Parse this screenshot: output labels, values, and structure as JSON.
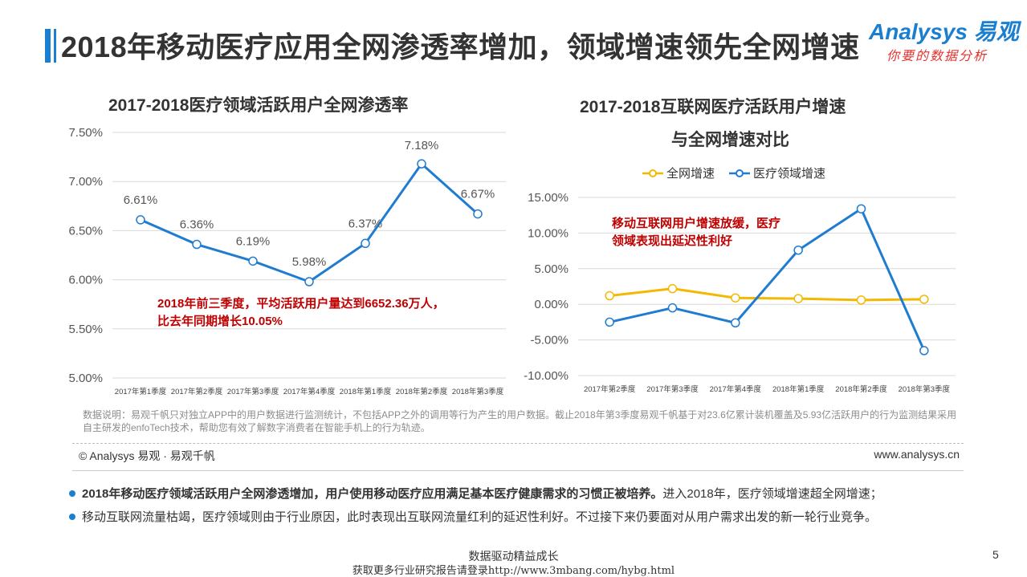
{
  "page_title": "2018年移动医疗应用全网渗透率增加，领域增速领先全网增速",
  "logo": {
    "main": "Analysys 易观",
    "sub": "你要的数据分析"
  },
  "colors": {
    "accent": "#1a7fd0",
    "series_blue": "#1f7cd1",
    "series_yellow": "#f5b800",
    "annotation": "#c00000"
  },
  "left_chart": {
    "title": "2017-2018医疗领域活跃用户全网渗透率",
    "annotation_line1": "2018年前三季度，平均活跃用户量达到6652.36万人，",
    "annotation_line2": "比去年同期增长10.05%"
  },
  "right_chart": {
    "title_line1": "2017-2018互联网医疗活跃用户增速",
    "title_line2": "与全网增速对比",
    "annotation_line1": "移动互联网用户增速放缓，医疗",
    "annotation_line2": "领域表现出延迟性利好"
  },
  "chart_data": [
    {
      "type": "line",
      "title": "2017-2018医疗领域活跃用户全网渗透率",
      "categories": [
        "2017年第1季度",
        "2017年第2季度",
        "2017年第3季度",
        "2017年第4季度",
        "2018年第1季度",
        "2018年第2季度",
        "2018年第3季度"
      ],
      "series": [
        {
          "values": [
            6.61,
            6.36,
            6.19,
            5.98,
            6.37,
            7.18,
            6.67
          ]
        }
      ],
      "data_labels": [
        "6.61%",
        "6.36%",
        "6.19%",
        "5.98%",
        "6.37%",
        "7.18%",
        "6.67%"
      ],
      "yticks": [
        "5.00%",
        "5.50%",
        "6.00%",
        "6.50%",
        "7.00%",
        "7.50%"
      ],
      "ylim": [
        5.0,
        7.5
      ],
      "grid": "horizontal"
    },
    {
      "type": "line",
      "title": "2017-2018互联网医疗活跃用户增速与全网增速对比",
      "categories": [
        "2017年第2季度",
        "2017年第3季度",
        "2017年第4季度",
        "2018年第1季度",
        "2018年第2季度",
        "2018年第3季度"
      ],
      "series": [
        {
          "name": "全网增速",
          "values": [
            1.2,
            2.2,
            0.9,
            0.8,
            0.6,
            0.7
          ]
        },
        {
          "name": "医疗领域增速",
          "values": [
            -2.5,
            -0.5,
            -2.6,
            7.6,
            13.4,
            -6.5
          ]
        }
      ],
      "yticks": [
        "-10.00%",
        "-5.00%",
        "0.00%",
        "5.00%",
        "10.00%",
        "15.00%"
      ],
      "ylim": [
        -10,
        15
      ],
      "legend": "top",
      "grid": "horizontal"
    }
  ],
  "note": "数据说明：易观千帆只对独立APP中的用户数据进行监测统计，不包括APP之外的调用等行为产生的用户数据。截止2018年第3季度易观千帆基于对23.6亿累计装机覆盖及5.93亿活跃用户的行为监测结果采用自主研发的enfoTech技术，帮助您有效了解数字消费者在智能手机上的行为轨迹。",
  "copyright": "© Analysys 易观 · 易观千帆",
  "website": "www.analysys.cn",
  "bullets": [
    {
      "bold": "2018年移动医疗领域活跃用户全网渗透增加，用户使用移动医疗应用满足基本医疗健康需求的习惯正被培养。",
      "rest": "进入2018年，医疗领域增速超全网增速；"
    },
    {
      "bold": "",
      "rest": "移动互联网流量枯竭，医疗领域则由于行业原因，此时表现出互联网流量红利的延迟性利好。不过接下来仍要面对从用户需求出发的新一轮行业竞争。"
    }
  ],
  "footer_line1": "数据驱动精益成长",
  "footer_line2": "获取更多行业研究报告请登录http://www.3mbang.com/hybg.html",
  "page_number": "5"
}
